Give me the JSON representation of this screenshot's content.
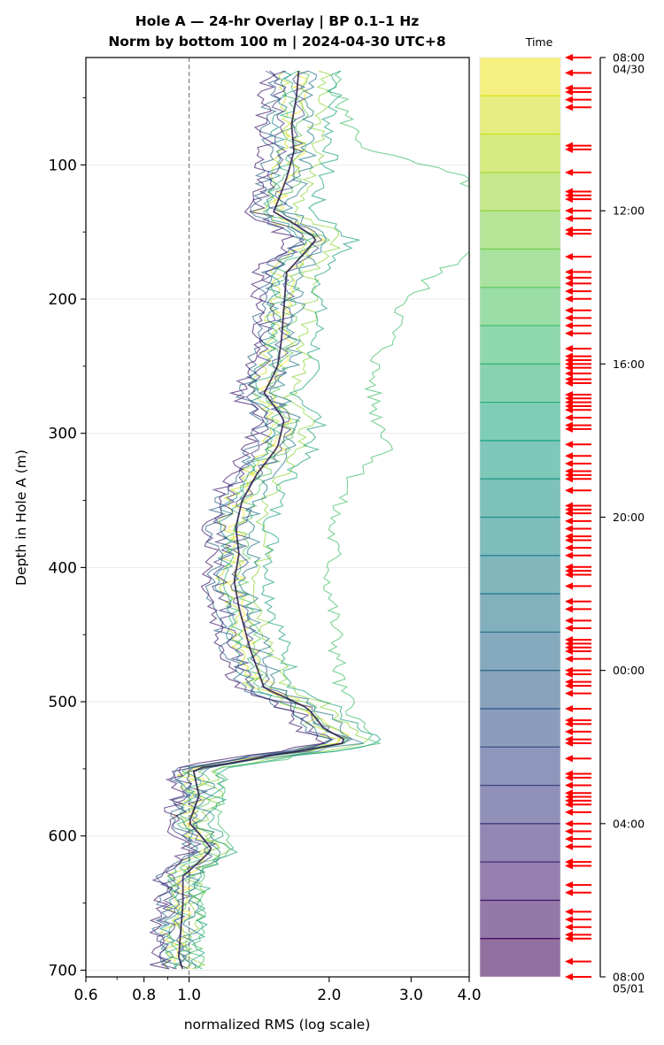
{
  "chart_data": {
    "type": "line",
    "title_line1": "Hole A — 24-hr Overlay  |  BP 0.1–1 Hz",
    "title_line2": "Norm by bottom 100 m  |  2024-04-30 UTC+8",
    "xlabel": "normalized RMS  (log scale)",
    "ylabel": "Depth in Hole A (m)",
    "xscale": "log",
    "xlim": [
      0.6,
      4.0
    ],
    "ylim": [
      705,
      20
    ],
    "ylim_inverted": true,
    "xticks": [
      0.6,
      0.8,
      1.0,
      2.0,
      3.0,
      4.0
    ],
    "xtick_labels": [
      "0.6",
      "0.8",
      "1.0",
      "2.0",
      "3.0",
      "4.0"
    ],
    "yticks": [
      100,
      200,
      300,
      400,
      500,
      600,
      700
    ],
    "ytick_labels": [
      "100",
      "200",
      "300",
      "400",
      "500",
      "600",
      "700"
    ],
    "reference_line_x": 1.0,
    "grid": "horizontal",
    "colormap": "viridis",
    "colorbar": {
      "label": "Time",
      "ticks": [
        "08:00\n04/30",
        "12:00",
        "16:00",
        "20:00",
        "00:00",
        "04:00",
        "08:00\n05/01"
      ],
      "tick_hours": [
        0,
        4,
        8,
        12,
        16,
        20,
        24
      ],
      "n_bands": 24
    },
    "profile_depths": [
      30,
      50,
      70,
      90,
      110,
      135,
      155,
      180,
      205,
      230,
      250,
      270,
      290,
      310,
      330,
      350,
      370,
      390,
      410,
      430,
      460,
      490,
      505,
      520,
      530,
      540,
      550,
      570,
      590,
      610,
      630,
      650,
      670,
      690,
      700
    ],
    "median_profile": [
      1.72,
      1.7,
      1.66,
      1.68,
      1.62,
      1.52,
      1.88,
      1.62,
      1.6,
      1.58,
      1.55,
      1.45,
      1.6,
      1.55,
      1.4,
      1.3,
      1.26,
      1.28,
      1.25,
      1.28,
      1.35,
      1.45,
      1.8,
      1.95,
      2.2,
      1.5,
      1.02,
      1.05,
      1.0,
      1.12,
      0.97,
      0.97,
      0.96,
      0.95,
      0.97
    ],
    "series": [
      {
        "hour": 0.0,
        "values": [
          1.72,
          1.74,
          1.68,
          1.71,
          1.64,
          1.52,
          1.92,
          1.65,
          1.61,
          1.62,
          1.57,
          1.44,
          1.63,
          1.58,
          1.42,
          1.31,
          1.27,
          1.28,
          1.26,
          1.29,
          1.36,
          1.47,
          1.83,
          1.99,
          2.24,
          1.52,
          1.03,
          1.06,
          1.0,
          1.13,
          0.96,
          0.98,
          0.95,
          0.94,
          0.97
        ]
      },
      {
        "hour": 2.0,
        "values": [
          1.62,
          1.6,
          1.58,
          1.6,
          1.55,
          1.43,
          1.8,
          1.55,
          1.52,
          1.5,
          1.47,
          1.38,
          1.52,
          1.47,
          1.33,
          1.24,
          1.2,
          1.22,
          1.19,
          1.22,
          1.28,
          1.38,
          1.72,
          1.87,
          2.1,
          1.43,
          0.98,
          1.01,
          0.95,
          1.07,
          0.92,
          0.93,
          0.91,
          0.9,
          0.93
        ]
      },
      {
        "hour": 4.0,
        "values": [
          1.95,
          1.92,
          1.88,
          1.9,
          1.83,
          1.72,
          2.12,
          1.83,
          1.81,
          1.79,
          1.75,
          1.64,
          1.8,
          1.75,
          1.58,
          1.47,
          1.42,
          1.45,
          1.41,
          1.44,
          1.52,
          1.64,
          2.02,
          2.2,
          2.45,
          1.66,
          1.1,
          1.14,
          1.06,
          1.2,
          1.04,
          1.05,
          1.03,
          1.02,
          1.05
        ]
      },
      {
        "hour": 6.0,
        "values": [
          1.78,
          1.76,
          1.72,
          1.75,
          1.68,
          1.58,
          1.95,
          1.68,
          1.66,
          1.64,
          1.6,
          1.5,
          1.66,
          1.6,
          1.45,
          1.35,
          1.3,
          1.33,
          1.29,
          1.33,
          1.4,
          1.5,
          1.86,
          2.02,
          2.28,
          1.55,
          1.05,
          1.08,
          1.02,
          1.15,
          0.99,
          1.0,
          0.98,
          0.97,
          1.0
        ]
      },
      {
        "hour": 7.0,
        "values": [
          2.05,
          2.1,
          2.2,
          2.45,
          3.9,
          4.3,
          4.5,
          3.4,
          2.9,
          2.7,
          2.5,
          2.48,
          2.55,
          2.75,
          2.3,
          2.1,
          2.02,
          2.05,
          2.0,
          2.03,
          2.08,
          2.1,
          2.25,
          2.35,
          2.55,
          1.75,
          1.15,
          1.18,
          1.12,
          1.24,
          1.05,
          1.06,
          1.05,
          1.04,
          1.06
        ]
      },
      {
        "hour": 8.0,
        "values": [
          1.68,
          1.66,
          1.62,
          1.65,
          1.58,
          1.48,
          1.85,
          1.58,
          1.56,
          1.55,
          1.51,
          1.41,
          1.56,
          1.51,
          1.37,
          1.27,
          1.23,
          1.25,
          1.22,
          1.25,
          1.32,
          1.42,
          1.76,
          1.91,
          2.16,
          1.47,
          1.0,
          1.03,
          0.97,
          1.1,
          0.94,
          0.95,
          0.94,
          0.93,
          0.95
        ]
      },
      {
        "hour": 10.0,
        "values": [
          2.1,
          2.05,
          2.0,
          2.02,
          1.95,
          1.84,
          2.25,
          1.93,
          1.9,
          1.88,
          1.84,
          1.72,
          1.9,
          1.83,
          1.66,
          1.55,
          1.5,
          1.52,
          1.48,
          1.52,
          1.6,
          1.7,
          2.08,
          2.28,
          2.6,
          1.72,
          1.13,
          1.16,
          1.09,
          1.23,
          1.06,
          1.07,
          1.05,
          1.04,
          1.07
        ]
      },
      {
        "hour": 12.0,
        "values": [
          1.6,
          1.58,
          1.55,
          1.58,
          1.52,
          1.42,
          1.78,
          1.52,
          1.5,
          1.49,
          1.45,
          1.36,
          1.5,
          1.45,
          1.31,
          1.22,
          1.18,
          1.2,
          1.17,
          1.2,
          1.26,
          1.36,
          1.69,
          1.84,
          2.08,
          1.41,
          0.97,
          1.0,
          0.94,
          1.06,
          0.91,
          0.92,
          0.9,
          0.89,
          0.92
        ]
      },
      {
        "hour": 14.0,
        "values": [
          1.85,
          1.82,
          1.78,
          1.8,
          1.74,
          1.63,
          2.02,
          1.73,
          1.71,
          1.69,
          1.65,
          1.55,
          1.71,
          1.65,
          1.5,
          1.39,
          1.35,
          1.37,
          1.33,
          1.37,
          1.44,
          1.55,
          1.92,
          2.09,
          2.36,
          1.6,
          1.07,
          1.1,
          1.04,
          1.17,
          1.01,
          1.02,
          1.0,
          0.99,
          1.02
        ]
      },
      {
        "hour": 16.0,
        "values": [
          1.52,
          1.5,
          1.48,
          1.5,
          1.45,
          1.36,
          1.7,
          1.45,
          1.43,
          1.42,
          1.39,
          1.3,
          1.44,
          1.39,
          1.26,
          1.17,
          1.13,
          1.15,
          1.12,
          1.15,
          1.21,
          1.31,
          1.62,
          1.77,
          2.0,
          1.36,
          0.94,
          0.97,
          0.91,
          1.03,
          0.88,
          0.89,
          0.87,
          0.86,
          0.89
        ]
      },
      {
        "hour": 18.0,
        "values": [
          1.74,
          1.72,
          1.69,
          1.71,
          1.65,
          1.54,
          1.91,
          1.64,
          1.62,
          1.6,
          1.57,
          1.47,
          1.62,
          1.57,
          1.42,
          1.32,
          1.28,
          1.3,
          1.27,
          1.3,
          1.37,
          1.47,
          1.82,
          1.98,
          2.23,
          1.51,
          1.02,
          1.05,
          0.99,
          1.12,
          0.96,
          0.97,
          0.96,
          0.95,
          0.97
        ]
      },
      {
        "hour": 20.0,
        "values": [
          1.58,
          1.56,
          1.53,
          1.55,
          1.5,
          1.4,
          1.76,
          1.5,
          1.48,
          1.47,
          1.44,
          1.35,
          1.49,
          1.44,
          1.3,
          1.21,
          1.17,
          1.19,
          1.16,
          1.19,
          1.25,
          1.35,
          1.68,
          1.83,
          2.06,
          1.4,
          0.96,
          0.99,
          0.93,
          1.05,
          0.9,
          0.91,
          0.89,
          0.88,
          0.91
        ]
      },
      {
        "hour": 22.0,
        "values": [
          1.48,
          1.46,
          1.44,
          1.46,
          1.42,
          1.33,
          1.66,
          1.42,
          1.4,
          1.39,
          1.36,
          1.27,
          1.41,
          1.36,
          1.23,
          1.15,
          1.11,
          1.13,
          1.1,
          1.13,
          1.19,
          1.28,
          1.59,
          1.73,
          1.95,
          1.33,
          0.92,
          0.95,
          0.89,
          1.01,
          0.86,
          0.87,
          0.86,
          0.85,
          0.87
        ]
      }
    ],
    "event_markers_hours": [
      0.0,
      0.4,
      0.8,
      0.9,
      1.1,
      1.3,
      2.3,
      2.4,
      3.0,
      3.5,
      3.6,
      3.7,
      4.0,
      4.2,
      4.5,
      4.6,
      5.2,
      5.6,
      5.75,
      5.9,
      6.1,
      6.3,
      6.6,
      6.8,
      7.0,
      7.2,
      7.6,
      7.8,
      7.9,
      8.0,
      8.1,
      8.25,
      8.4,
      8.5,
      8.8,
      8.9,
      9.0,
      9.1,
      9.2,
      9.4,
      9.6,
      9.7,
      10.1,
      10.4,
      10.6,
      10.8,
      10.9,
      11.0,
      11.3,
      11.7,
      11.8,
      11.9,
      12.1,
      12.3,
      12.5,
      12.6,
      12.8,
      13.0,
      13.3,
      13.4,
      13.5,
      13.8,
      14.2,
      14.4,
      14.7,
      14.9,
      15.2,
      15.3,
      15.4,
      15.5,
      15.7,
      16.0,
      16.1,
      16.3,
      16.4,
      16.6,
      17.0,
      17.3,
      17.4,
      17.6,
      17.8,
      17.9,
      18.3,
      18.7,
      18.8,
      19.0,
      19.2,
      19.3,
      19.4,
      19.5,
      19.7,
      20.0,
      20.2,
      20.4,
      20.6,
      21.0,
      21.1,
      21.6,
      21.8,
      22.3,
      22.5,
      22.7,
      22.9,
      23.0,
      23.6,
      24.0
    ]
  }
}
